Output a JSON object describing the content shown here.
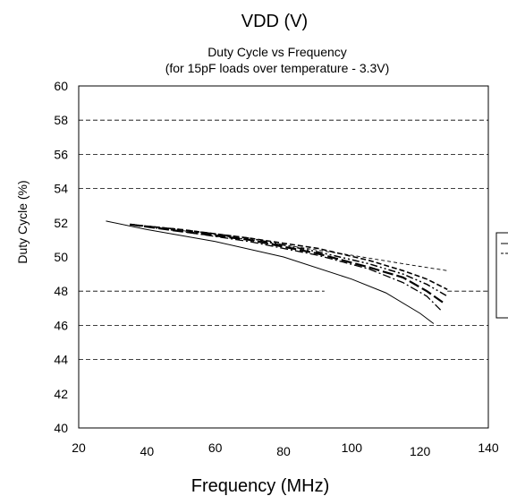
{
  "header": {
    "top_label": "VDD (V)"
  },
  "chart_data": {
    "type": "line",
    "title": "Duty Cycle vs Frequency",
    "subtitle": "(for 15pF loads over temperature - 3.3V)",
    "xlabel": "Frequency (MHz)",
    "ylabel": "Duty Cycle (%)",
    "xlim": [
      20,
      140
    ],
    "ylim": [
      40,
      60
    ],
    "x_ticks": [
      "20",
      "40",
      "60",
      "80",
      "100",
      "120",
      "140"
    ],
    "y_ticks": [
      "40",
      "42",
      "44",
      "46",
      "48",
      "50",
      "52",
      "54",
      "56",
      "58",
      "60"
    ],
    "grid": "dashed horizontal lines at 44, 46, 48, 54, 56, 58",
    "legend": "right, partially cropped",
    "series": [
      {
        "style": "solid",
        "x": [
          28,
          40,
          60,
          80,
          100,
          110,
          120,
          124
        ],
        "y": [
          52.1,
          51.6,
          50.9,
          50.0,
          48.7,
          47.9,
          46.7,
          46.1
        ]
      },
      {
        "style": "dash-dot",
        "x": [
          35,
          50,
          70,
          90,
          105,
          115,
          122,
          126
        ],
        "y": [
          51.9,
          51.5,
          50.9,
          50.1,
          49.3,
          48.5,
          47.7,
          46.9
        ]
      },
      {
        "style": "long-dash",
        "x": [
          35,
          50,
          70,
          90,
          105,
          115,
          122,
          127
        ],
        "y": [
          51.9,
          51.5,
          51.0,
          50.2,
          49.4,
          48.8,
          48.0,
          47.3
        ]
      },
      {
        "style": "dash-dot-dot",
        "x": [
          35,
          50,
          70,
          90,
          105,
          115,
          122,
          128
        ],
        "y": [
          51.9,
          51.6,
          51.1,
          50.3,
          49.6,
          49.0,
          48.4,
          47.7
        ]
      },
      {
        "style": "short-dash",
        "x": [
          35,
          50,
          70,
          90,
          105,
          115,
          122,
          128
        ],
        "y": [
          51.9,
          51.6,
          51.1,
          50.5,
          49.8,
          49.2,
          48.7,
          48.1
        ]
      },
      {
        "style": "fine-dash",
        "x": [
          36,
          60,
          80,
          100,
          115,
          128
        ],
        "y": [
          51.9,
          51.3,
          50.7,
          50.1,
          49.6,
          49.2
        ]
      }
    ]
  }
}
